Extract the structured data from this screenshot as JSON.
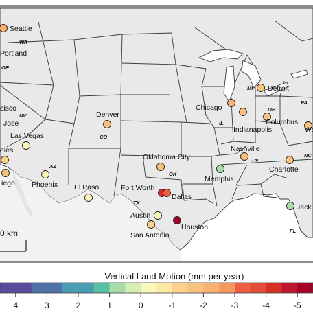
{
  "map": {
    "scale_label": "0 km",
    "state_labels": [
      "WA",
      "OR",
      "NV",
      "CO",
      "AZ",
      "OK",
      "TX",
      "IN",
      "MI",
      "OH",
      "PA",
      "TN",
      "NC",
      "FL",
      "IL"
    ],
    "cities": [
      {
        "name": "Seattle",
        "rate": -2.5,
        "color": "#f8b173"
      },
      {
        "name": "Portland",
        "rate": null,
        "color": null
      },
      {
        "name": "cisco",
        "rate": null,
        "color": null
      },
      {
        "name": "Jose",
        "rate": null,
        "color": null
      },
      {
        "name": "Las Vegas",
        "rate": -0.5,
        "color": "#fbf7bb"
      },
      {
        "name": "eles",
        "rate": -1.5,
        "color": "#fdd08c"
      },
      {
        "name": "iego",
        "rate": -2.0,
        "color": "#f9c17e"
      },
      {
        "name": "Phoenix",
        "rate": -0.5,
        "color": "#fbf7bb"
      },
      {
        "name": "Denver",
        "rate": -2.0,
        "color": "#f9c17e"
      },
      {
        "name": "El Paso",
        "rate": -0.5,
        "color": "#fbf7bb"
      },
      {
        "name": "Oklahoma City",
        "rate": -2.0,
        "color": "#f9c17e"
      },
      {
        "name": "Fort Worth",
        "rate": -4.5,
        "color": "#d73027"
      },
      {
        "name": "Dallas",
        "rate": -3.5,
        "color": "#ec5f43"
      },
      {
        "name": "Austin",
        "rate": -0.5,
        "color": "#fbf7bb"
      },
      {
        "name": "San Antonio",
        "rate": -1.5,
        "color": "#fdd08c"
      },
      {
        "name": "Houston",
        "rate": -5.5,
        "color": "#a50026"
      },
      {
        "name": "Memphis",
        "rate": 0.5,
        "color": "#a8dcaa"
      },
      {
        "name": "Nashville",
        "rate": -2.0,
        "color": "#f9c17e"
      },
      {
        "name": "Chicago",
        "rate": -2.5,
        "color": "#f8b173"
      },
      {
        "name": "Indianapolis",
        "rate": -2.0,
        "color": "#f9c17e"
      },
      {
        "name": "Detroit",
        "rate": -2.0,
        "color": "#f9c17e"
      },
      {
        "name": "Columbus",
        "rate": -2.0,
        "color": "#f9c17e"
      },
      {
        "name": "Charlotte",
        "rate": -2.0,
        "color": "#f9c17e"
      },
      {
        "name": "Jack",
        "rate": 0.5,
        "color": "#a8dcaa"
      },
      {
        "name": "Wa",
        "rate": -2.0,
        "color": "#f9c17e"
      }
    ]
  },
  "colorbar": {
    "title": "Vertical Land Motion (mm per year)",
    "ticks": [
      "4",
      "3",
      "2",
      "1",
      "0",
      "-1",
      "-2",
      "-3",
      "-4",
      "-5"
    ],
    "bins": [
      {
        "from": 4.5,
        "to": 4,
        "color": "#5b4a9b"
      },
      {
        "from": 4,
        "to": 3.5,
        "color": "#5b4a9b"
      },
      {
        "from": 3.5,
        "to": 3,
        "color": "#4f70a8"
      },
      {
        "from": 3,
        "to": 2.5,
        "color": "#4f70a8"
      },
      {
        "from": 2.5,
        "to": 2,
        "color": "#4a9db0"
      },
      {
        "from": 2,
        "to": 1.5,
        "color": "#4a9db0"
      },
      {
        "from": 1.5,
        "to": 1,
        "color": "#5cc0a2"
      },
      {
        "from": 1,
        "to": 0.5,
        "color": "#a8dcaa"
      },
      {
        "from": 0.5,
        "to": 0,
        "color": "#d8efb3"
      },
      {
        "from": 0,
        "to": -0.5,
        "color": "#fbf7bb"
      },
      {
        "from": -0.5,
        "to": -1,
        "color": "#fde9a3"
      },
      {
        "from": -1,
        "to": -1.5,
        "color": "#fdd08c"
      },
      {
        "from": -1.5,
        "to": -2,
        "color": "#f9c17e"
      },
      {
        "from": -2,
        "to": -2.5,
        "color": "#f8b173"
      },
      {
        "from": -2.5,
        "to": -3,
        "color": "#f59a5e"
      },
      {
        "from": -3,
        "to": -3.5,
        "color": "#ec5f43"
      },
      {
        "from": -3.5,
        "to": -4,
        "color": "#e44c3a"
      },
      {
        "from": -4,
        "to": -4.5,
        "color": "#d73027"
      },
      {
        "from": -4.5,
        "to": -5,
        "color": "#bf1731"
      },
      {
        "from": -5,
        "to": -5.5,
        "color": "#a50026"
      }
    ]
  }
}
